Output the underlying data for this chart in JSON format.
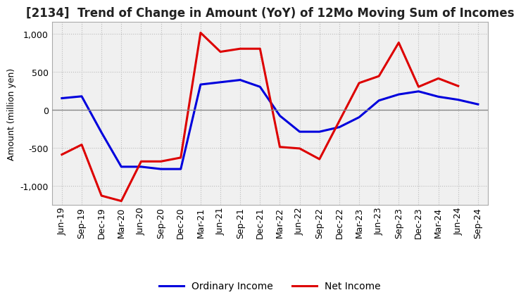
{
  "title": "[2134]  Trend of Change in Amount (YoY) of 12Mo Moving Sum of Incomes",
  "ylabel": "Amount (million yen)",
  "x_labels": [
    "Jun-19",
    "Sep-19",
    "Dec-19",
    "Mar-20",
    "Jun-20",
    "Sep-20",
    "Dec-20",
    "Mar-21",
    "Jun-21",
    "Sep-21",
    "Dec-21",
    "Mar-22",
    "Jun-22",
    "Sep-22",
    "Dec-22",
    "Mar-23",
    "Jun-23",
    "Sep-23",
    "Dec-23",
    "Mar-24",
    "Jun-24",
    "Sep-24"
  ],
  "ordinary_income": [
    150,
    175,
    -300,
    -750,
    -750,
    -780,
    -780,
    330,
    360,
    390,
    300,
    -80,
    -290,
    -290,
    -230,
    -100,
    120,
    200,
    240,
    170,
    130,
    70
  ],
  "net_income": [
    -590,
    -460,
    -1130,
    -1200,
    -680,
    -680,
    -630,
    1010,
    760,
    800,
    800,
    -490,
    -510,
    -650,
    -150,
    350,
    440,
    880,
    300,
    410,
    310,
    null
  ],
  "ordinary_income_color": "#0000dd",
  "net_income_color": "#dd0000",
  "ylim": [
    -1250,
    1150
  ],
  "yticks": [
    -1000,
    -500,
    0,
    500,
    1000
  ],
  "plot_bg_color": "#f0f0f0",
  "fig_bg_color": "#ffffff",
  "grid_color": "#bbbbbb",
  "legend_labels": [
    "Ordinary Income",
    "Net Income"
  ],
  "title_fontsize": 12,
  "axis_label_fontsize": 9,
  "tick_fontsize": 9,
  "legend_fontsize": 10
}
